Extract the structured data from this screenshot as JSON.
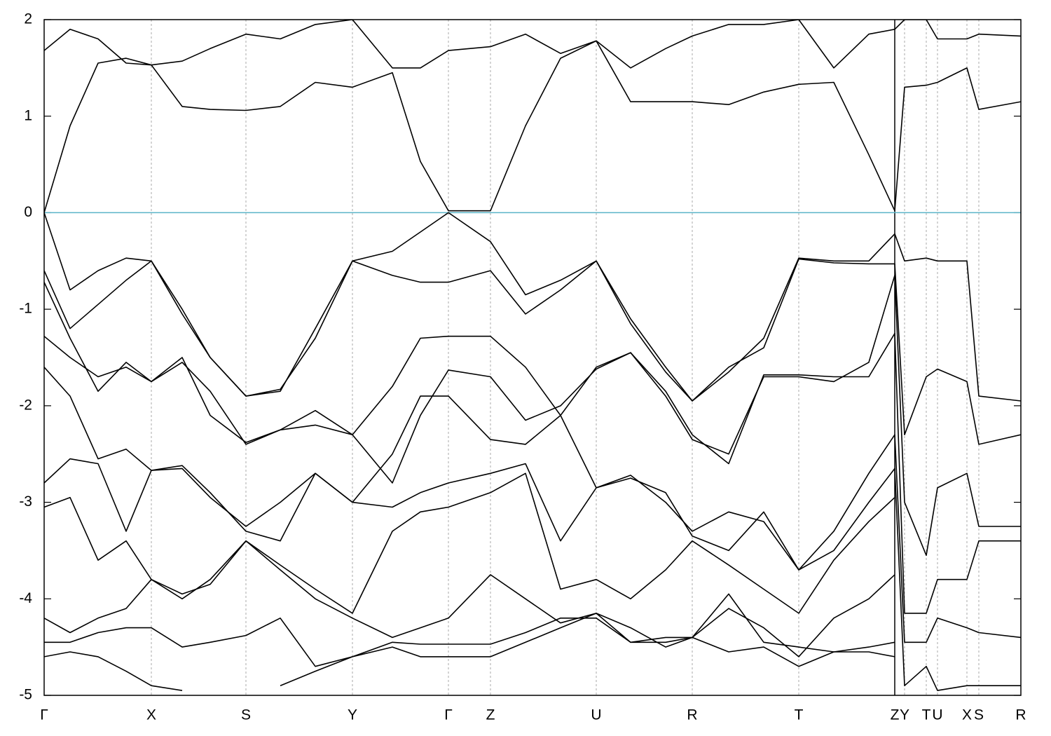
{
  "chart_data": {
    "type": "line",
    "x": [
      0,
      0.37,
      0.77,
      1.17,
      1.53,
      1.97,
      2.37,
      2.88,
      3.37,
      3.87,
      4.4,
      4.97,
      5.37,
      5.77,
      6.37,
      6.87,
      7.37,
      7.88,
      8.37,
      8.87,
      9.25,
      9.77,
      10.27,
      10.77,
      11.27,
      11.77,
      12.14,
      12.28,
      12.59,
      12.75,
      13.17,
      13.34,
      13.94
    ],
    "xlim": [
      0,
      13.94
    ],
    "xticks": [
      {
        "value": 0,
        "label": "Γ"
      },
      {
        "value": 1.53,
        "label": "X"
      },
      {
        "value": 2.88,
        "label": "S"
      },
      {
        "value": 4.4,
        "label": "Y"
      },
      {
        "value": 5.77,
        "label": "Γ"
      },
      {
        "value": 6.37,
        "label": "Z"
      },
      {
        "value": 7.88,
        "label": "U"
      },
      {
        "value": 9.25,
        "label": "R"
      },
      {
        "value": 10.77,
        "label": "T"
      },
      {
        "value": 12.14,
        "label": "Z"
      },
      {
        "value": 12.28,
        "label": "Y"
      },
      {
        "value": 12.59,
        "label": "T"
      },
      {
        "value": 12.75,
        "label": "U"
      },
      {
        "value": 13.17,
        "label": "X"
      },
      {
        "value": 13.34,
        "label": "S"
      },
      {
        "value": 13.94,
        "label": "R"
      }
    ],
    "ylim": [
      -5,
      2
    ],
    "yticks": [
      -5,
      -4,
      -3,
      -2,
      -1,
      0,
      1,
      2
    ],
    "grid": "x",
    "separators": [
      12.14
    ],
    "hline": {
      "value": 0,
      "color": "#5ab4c8"
    },
    "series": [
      {
        "color": "#000000",
        "values": [
          0,
          0.9,
          1.55,
          1.6,
          1.53,
          1.1,
          1.07,
          1.06,
          1.1,
          1.35,
          1.3,
          1.45,
          0.53,
          0.02,
          0.02,
          0.9,
          1.6,
          1.78,
          1.15,
          1.15,
          1.15,
          1.12,
          1.25,
          1.33,
          1.35,
          0.6,
          0.02,
          1.3,
          1.32,
          1.35,
          1.5,
          1.07,
          1.15
        ]
      },
      {
        "color": "#000000",
        "values": [
          1.68,
          1.9,
          1.8,
          1.55,
          1.53,
          1.57,
          1.7,
          1.85,
          1.8,
          1.95,
          2.0,
          1.5,
          1.5,
          1.68,
          1.72,
          1.85,
          1.65,
          1.78,
          1.5,
          1.7,
          1.83,
          1.95,
          1.95,
          2.0,
          1.5,
          1.85,
          1.9,
          2.0,
          2.0,
          1.8,
          1.8,
          1.85,
          1.83
        ]
      },
      {
        "color": "#000000",
        "values": [
          0,
          -0.8,
          -0.6,
          -0.47,
          -0.5,
          -1.0,
          -1.5,
          -1.9,
          -1.85,
          -1.2,
          -0.5,
          -0.4,
          -0.2,
          0,
          -0.3,
          -0.85,
          -0.7,
          -0.5,
          -1.1,
          -1.6,
          -1.95,
          -1.65,
          -1.3,
          -0.47,
          -0.5,
          -0.5,
          -0.22,
          -0.5,
          -0.47,
          -0.5,
          -0.5,
          -1.9,
          -1.95
        ]
      },
      {
        "color": "#000000",
        "values": [
          -0.6,
          -1.2,
          -0.95,
          -0.7,
          -0.5,
          -1.05,
          -1.5,
          -1.9,
          -1.83,
          -1.3,
          -0.5,
          -0.65,
          -0.72,
          -0.72,
          -0.6,
          -1.05,
          -0.8,
          -0.5,
          -1.15,
          -1.65,
          -1.95,
          -1.6,
          -1.4,
          -0.48,
          -0.52,
          -0.53,
          -0.53,
          -2.3,
          -1.7,
          -1.62,
          -1.75,
          -2.4,
          -2.3
        ]
      },
      {
        "color": "#000000",
        "values": [
          -0.72,
          -1.3,
          -1.85,
          -1.55,
          -1.75,
          -1.55,
          -1.85,
          -2.4,
          -2.25,
          -2.2,
          -2.3,
          -1.8,
          -1.3,
          -1.28,
          -1.28,
          -1.6,
          -2.1,
          -1.6,
          -1.45,
          -1.9,
          -2.35,
          -2.5,
          -1.7,
          -1.7,
          -1.75,
          -1.55,
          -0.65,
          -3.0,
          -3.55,
          -2.85,
          -2.7,
          -3.25,
          -3.25
        ]
      },
      {
        "color": "#000000",
        "values": [
          -1.28,
          -1.5,
          -1.7,
          -1.6,
          -1.75,
          -1.5,
          -2.1,
          -2.38,
          -2.25,
          -2.05,
          -2.3,
          -2.8,
          -2.1,
          -1.63,
          -1.7,
          -2.15,
          -2.0,
          -1.62,
          -1.45,
          -1.85,
          -2.3,
          -2.6,
          -1.68,
          -1.68,
          -1.7,
          -1.7,
          -1.25,
          -4.15,
          -4.15,
          -3.8,
          -3.8,
          -3.4,
          -3.4
        ]
      },
      {
        "color": "#000000",
        "values": [
          -1.6,
          -1.9,
          -2.55,
          -2.45,
          -2.67,
          -2.65,
          -2.95,
          -3.25,
          -3.0,
          -2.7,
          -3.0,
          -2.5,
          -1.9,
          -1.9,
          -2.35,
          -2.4,
          -2.1,
          -2.85,
          -2.72,
          -3.0,
          -3.3,
          -3.1,
          -3.2,
          -3.7,
          -3.3,
          -2.7,
          -2.3,
          -4.45,
          -4.45,
          -4.2,
          -4.3,
          -4.35,
          -4.4
        ]
      },
      {
        "color": "#000000",
        "values": [
          -2.8,
          -2.55,
          -2.6,
          -3.3,
          -2.67,
          -2.62,
          -2.9,
          -3.3,
          -3.4,
          -2.7,
          -3.0,
          -3.05,
          -2.9,
          -2.8,
          -2.7,
          -2.6,
          -3.4,
          -2.85,
          -2.75,
          -2.9,
          -3.35,
          -3.5,
          -3.1,
          -3.7,
          -3.5,
          -3.0,
          -2.65,
          -4.9,
          -4.7,
          -4.95,
          -4.9,
          -4.9,
          -4.9
        ]
      },
      {
        "color": "#000000",
        "values": [
          -3.05,
          -2.95,
          -3.6,
          -3.4,
          -3.8,
          -4.0,
          -3.8,
          -3.4,
          -3.65,
          -3.9,
          -4.15,
          -3.3,
          -3.1,
          -3.05,
          -2.9,
          -2.7,
          -3.9,
          -3.8,
          -4.0,
          -3.7,
          -3.4,
          -3.65,
          -3.9,
          -4.15,
          -3.6,
          -3.2,
          -2.95,
          null,
          null,
          null,
          null,
          null,
          null
        ]
      },
      {
        "color": "#000000",
        "values": [
          -4.2,
          -4.35,
          -4.2,
          -4.1,
          -3.8,
          -3.95,
          -3.85,
          -3.4,
          -3.7,
          -4.0,
          -4.2,
          -4.4,
          -4.3,
          -4.2,
          -3.75,
          -4.0,
          -4.25,
          -4.15,
          -4.3,
          -4.5,
          -4.4,
          -4.1,
          -4.3,
          -4.6,
          -4.2,
          -4.0,
          -3.75,
          null,
          null,
          null,
          null,
          null,
          null
        ]
      },
      {
        "color": "#000000",
        "values": [
          -4.45,
          -4.45,
          -4.35,
          -4.3,
          -4.3,
          -4.5,
          -4.45,
          -4.38,
          -4.2,
          -4.7,
          -4.6,
          -4.45,
          -4.47,
          -4.47,
          -4.47,
          -4.35,
          -4.2,
          -4.2,
          -4.45,
          -4.45,
          -4.4,
          -3.95,
          -4.45,
          -4.5,
          -4.55,
          -4.5,
          -4.45,
          null,
          null,
          null,
          null,
          null,
          null
        ]
      },
      {
        "color": "#000000",
        "values": [
          -4.6,
          -4.55,
          -4.6,
          -4.75,
          -4.9,
          -4.95,
          null,
          null,
          -4.9,
          -4.75,
          -4.6,
          -4.5,
          -4.6,
          -4.6,
          -4.6,
          -4.45,
          -4.3,
          -4.15,
          -4.45,
          -4.4,
          -4.4,
          -4.55,
          -4.5,
          -4.7,
          -4.55,
          -4.55,
          -4.6,
          null,
          null,
          null,
          null,
          null,
          null
        ]
      }
    ]
  }
}
